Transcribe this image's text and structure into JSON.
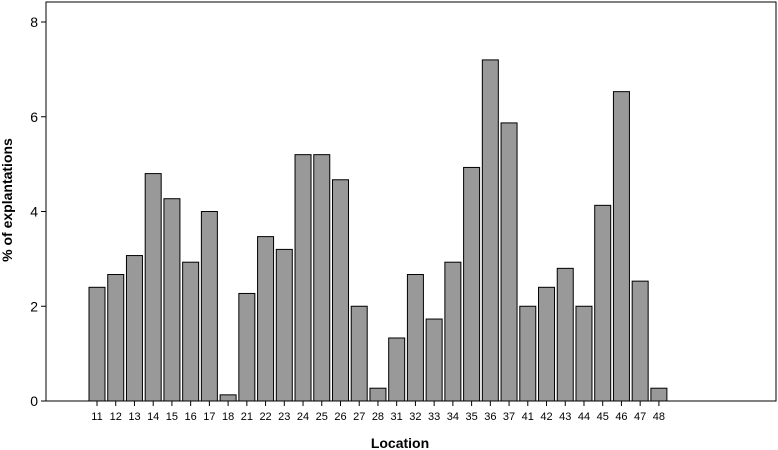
{
  "chart_data": {
    "type": "bar",
    "title": "",
    "xlabel": "Location",
    "ylabel": "% of explantations",
    "ylim": [
      0,
      8
    ],
    "yticks": [
      0,
      2,
      4,
      6,
      8
    ],
    "grid": false,
    "categories": [
      "11",
      "12",
      "13",
      "14",
      "15",
      "16",
      "17",
      "18",
      "21",
      "22",
      "23",
      "24",
      "25",
      "26",
      "27",
      "28",
      "31",
      "32",
      "33",
      "34",
      "35",
      "36",
      "37",
      "41",
      "42",
      "43",
      "44",
      "45",
      "46",
      "47",
      "48"
    ],
    "values": [
      2.4,
      2.67,
      3.07,
      4.8,
      4.27,
      2.93,
      4.0,
      0.13,
      2.27,
      3.47,
      3.2,
      5.2,
      5.2,
      4.67,
      2.0,
      0.27,
      1.33,
      2.67,
      1.73,
      2.93,
      4.93,
      7.2,
      5.87,
      2.0,
      2.4,
      2.8,
      2.0,
      4.13,
      6.53,
      2.53,
      0.27
    ],
    "colors": {
      "bar_fill": "#999999",
      "bar_stroke": "#000000",
      "axis": "#000000"
    }
  }
}
